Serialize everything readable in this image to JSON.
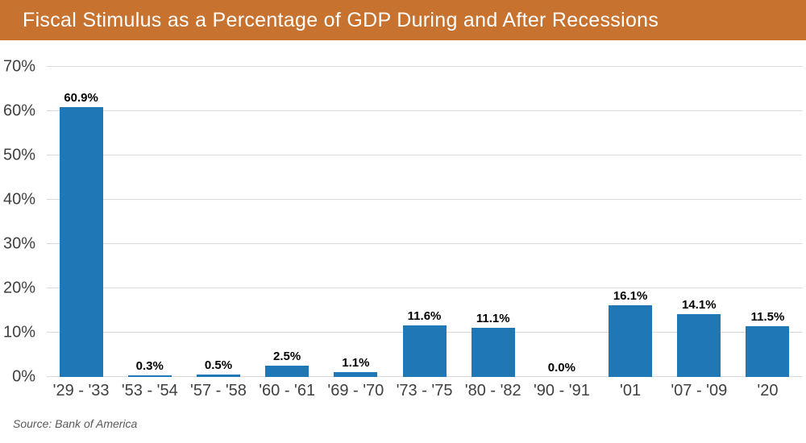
{
  "header": {
    "title": "Fiscal Stimulus as a Percentage of GDP During and After Recessions",
    "background_color": "#C7722E",
    "text_color": "#FFFFFF"
  },
  "chart_data": {
    "type": "bar",
    "title": "Fiscal Stimulus as a Percentage of GDP During and After Recessions",
    "categories": [
      "'29 - '33",
      "'53 - '54",
      "'57 - '58",
      "'60 - '61",
      "'69 - '70",
      "'73 - '75",
      "'80 - '82",
      "'90 - '91",
      "'01",
      "'07 - '09",
      "'20"
    ],
    "values": [
      60.9,
      0.3,
      0.5,
      2.5,
      1.1,
      11.6,
      11.1,
      0.0,
      16.1,
      14.1,
      11.5
    ],
    "data_labels": [
      "60.9%",
      "0.3%",
      "0.5%",
      "2.5%",
      "1.1%",
      "11.6%",
      "11.1%",
      "0.0%",
      "16.1%",
      "14.1%",
      "11.5%"
    ],
    "xlabel": "",
    "ylabel": "",
    "ylim": [
      0,
      70
    ],
    "y_tick_values": [
      0,
      10,
      20,
      30,
      40,
      50,
      60,
      70
    ],
    "y_tick_labels": [
      "0%",
      "10%",
      "20%",
      "30%",
      "40%",
      "50%",
      "60%",
      "70%"
    ],
    "grid": "horizontal",
    "legend": "none",
    "bar_color": "#2077B5",
    "grid_color": "#D9D9D9",
    "axis_text_color": "#404040",
    "data_label_color": "#000000"
  },
  "footer": {
    "source": "Source: Bank of America"
  }
}
